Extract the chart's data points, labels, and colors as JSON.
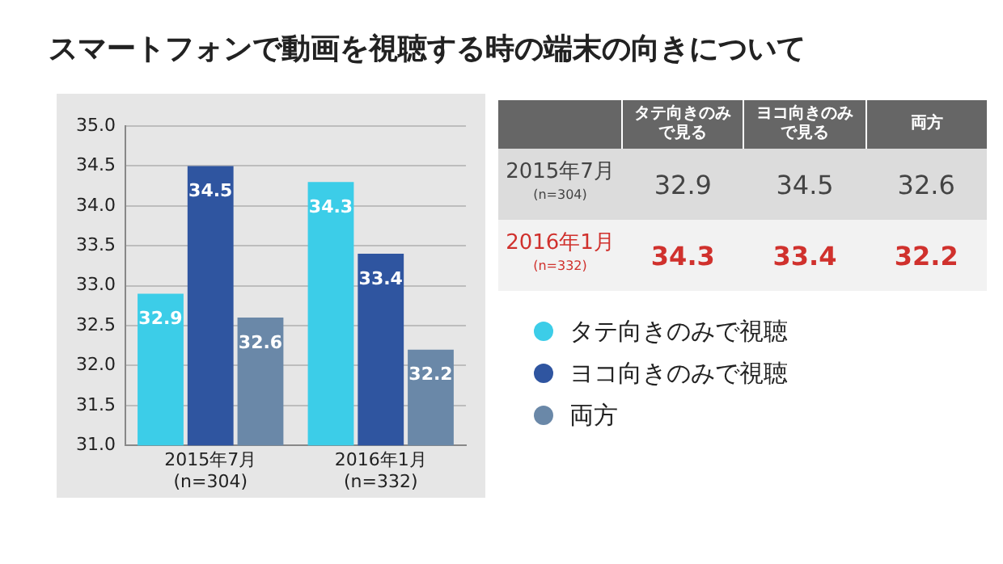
{
  "chart_data": [
    {
      "type": "bar",
      "title": "スマートフォンで動画を視聴する時の端末の向きについて",
      "categories": [
        "2015年7月\n(n=304)",
        "2016年1月\n(n=332)"
      ],
      "series": [
        {
          "name": "タテ向きのみで視聴",
          "color": "#3ccde8",
          "values": [
            32.9,
            34.3
          ]
        },
        {
          "name": "ヨコ向きのみで視聴",
          "color": "#2f55a0",
          "values": [
            34.5,
            33.4
          ]
        },
        {
          "name": "両方",
          "color": "#6a88a8",
          "values": [
            32.6,
            32.2
          ]
        }
      ],
      "ylim": [
        31,
        35
      ],
      "yticks": [
        {
          "value": 31,
          "label": "31.0"
        },
        31.5,
        {
          "value": 32,
          "label": "32.0"
        },
        32.5,
        {
          "value": 33,
          "label": "33.0"
        },
        33.5,
        {
          "value": 34,
          "label": "34.0"
        },
        34.5,
        {
          "value": 35,
          "label": "35.0"
        }
      ],
      "grid": "y",
      "legend": "right",
      "data_labels": true
    },
    {
      "type": "other",
      "categories": [
        "2015年7月\n(n=304)",
        "2016年1月\n(n=332)"
      ],
      "series": [
        {
          "name": "タテ向きのみで見る",
          "colors": [
            "#dcdcdc",
            "#f2f2f2"
          ],
          "values": [
            32.9,
            34.3
          ]
        },
        {
          "name": "ヨコ向きのみで見る",
          "colors": [
            "#dcdcdc",
            "#f2f2f2"
          ],
          "values": [
            34.5,
            33.4
          ]
        },
        {
          "name": "両方",
          "colors": [
            "#dcdcdc",
            "#f2f2f2"
          ],
          "values": [
            32.6,
            32.2
          ]
        }
      ],
      "data_labels": true
    }
  ]
}
